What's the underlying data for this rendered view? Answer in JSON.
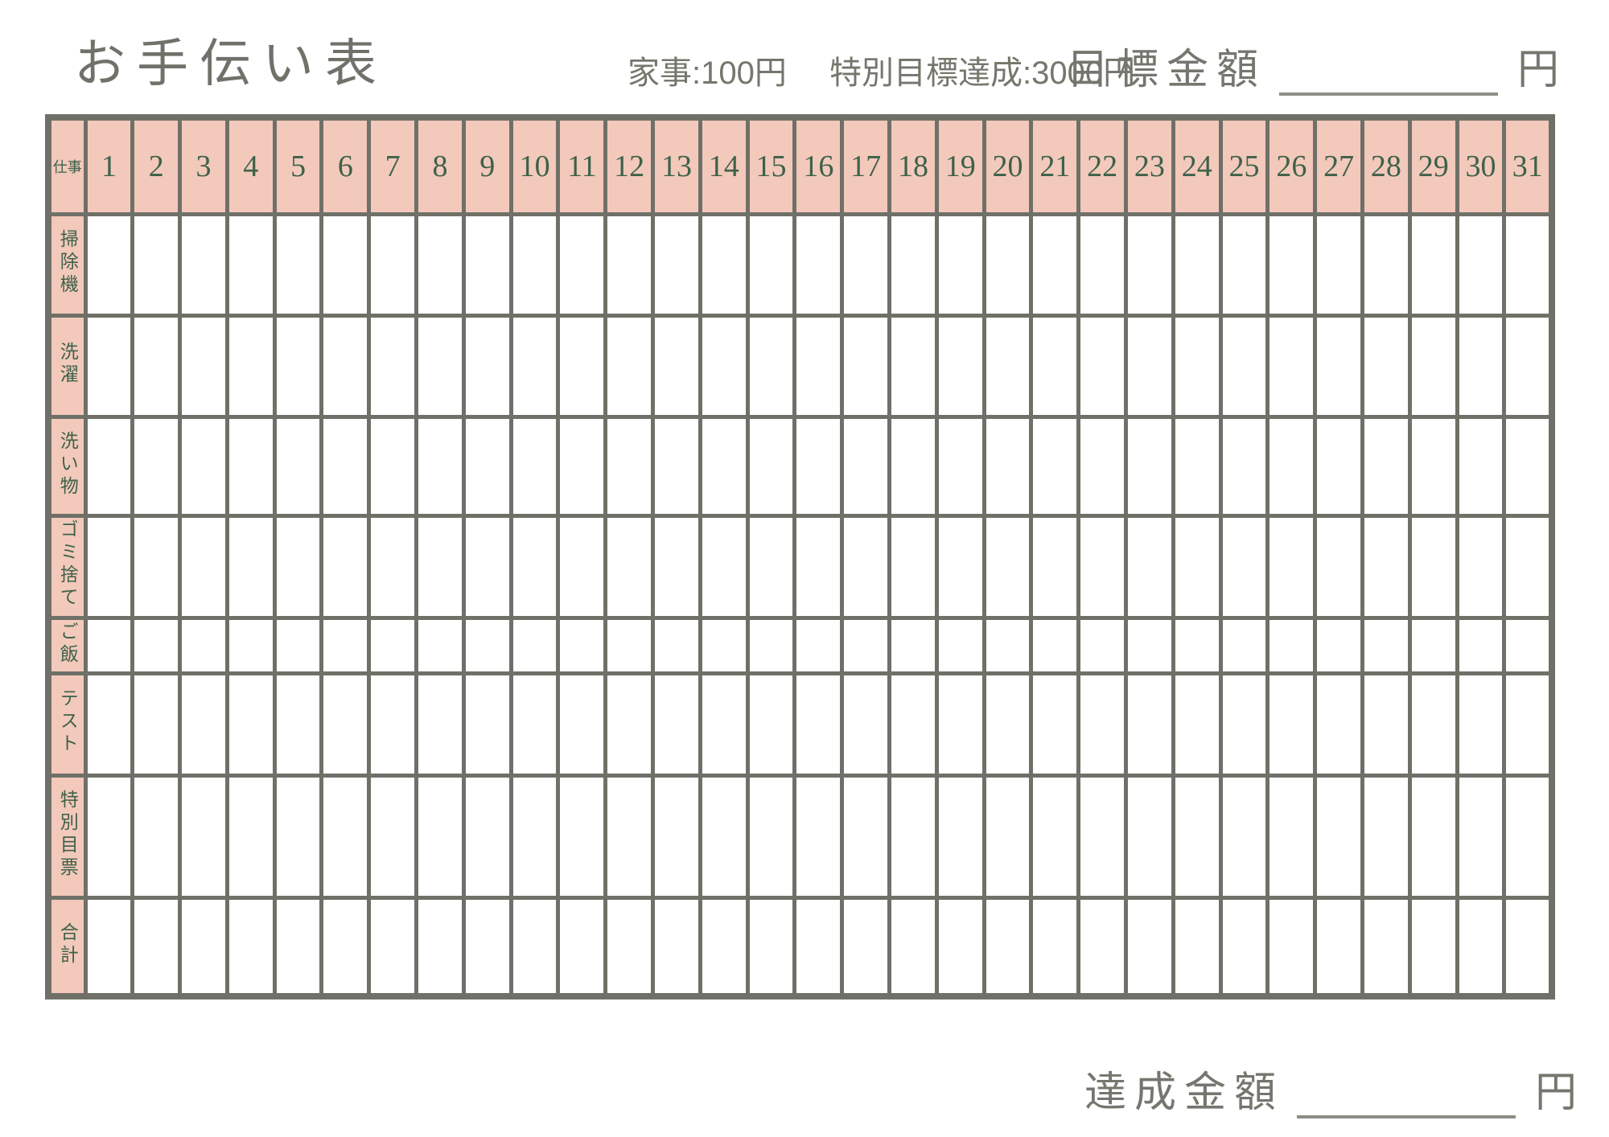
{
  "header": {
    "title": "お手伝い表",
    "housework_rate": "家事:100円",
    "special_goal_rate": "特別目標達成:3000円",
    "goal_label": "目標金額",
    "goal_unit": "円"
  },
  "table": {
    "corner_label": "仕事",
    "days": [
      "1",
      "2",
      "3",
      "4",
      "5",
      "6",
      "7",
      "8",
      "9",
      "10",
      "11",
      "12",
      "13",
      "14",
      "15",
      "16",
      "17",
      "18",
      "19",
      "20",
      "21",
      "22",
      "23",
      "24",
      "25",
      "26",
      "27",
      "28",
      "29",
      "30",
      "31"
    ],
    "rows": [
      {
        "label": "掃除機"
      },
      {
        "label": "洗濯"
      },
      {
        "label": "洗い物"
      },
      {
        "label": "ゴミ捨て"
      },
      {
        "label": "ご飯"
      },
      {
        "label": "テスト"
      },
      {
        "label": "特別目票"
      },
      {
        "label": "合計"
      }
    ]
  },
  "footer": {
    "achieved_label": "達成金額",
    "achieved_unit": "円"
  },
  "colors": {
    "pink": "#f2c9bb",
    "border": "#6f7067",
    "green": "#3e6149",
    "gray": "#75776c",
    "line": "#8d8e85"
  }
}
